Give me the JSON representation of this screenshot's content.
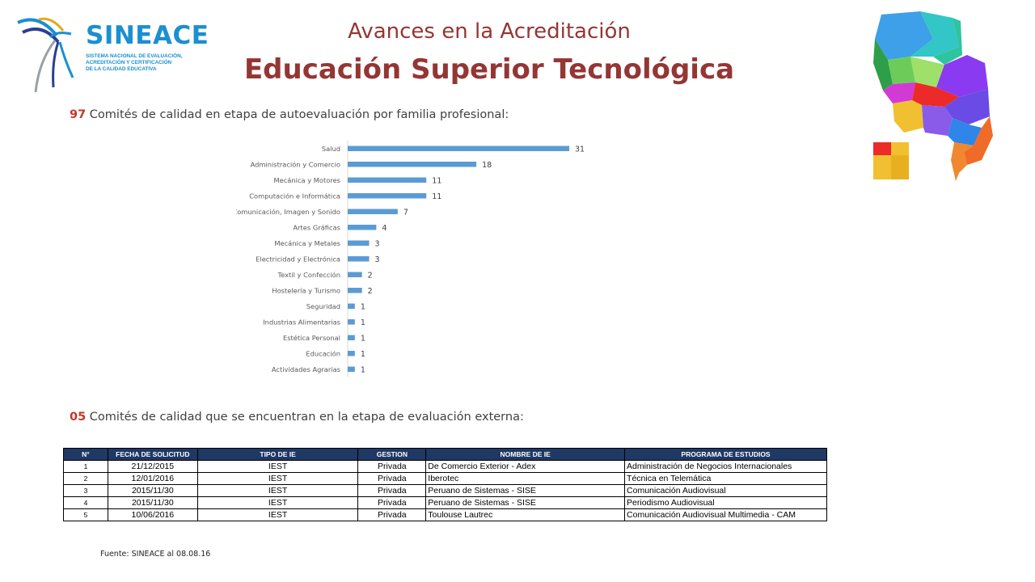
{
  "logo": {
    "name": "SINEACE",
    "subtitle_lines": [
      "SISTEMA NACIONAL DE EVALUACIÓN,",
      "ACREDITACIÓN Y CERTIFICACIÓN",
      "DE LA CALIDAD EDUCATIVA"
    ]
  },
  "header": {
    "title_line1": "Avances en la Acreditación",
    "title_line2": "Educación Superior Tecnológica"
  },
  "section1": {
    "count": "97",
    "text": " Comités de calidad en etapa de autoevaluación por  familia profesional:"
  },
  "section2": {
    "count": "05",
    "text": " Comités de calidad que se encuentran en la etapa de evaluación externa:"
  },
  "chart_data": {
    "type": "bar",
    "orientation": "horizontal",
    "categories": [
      "Salud",
      "Administración y Comercio",
      "Mecánica y Motores",
      "Computación e Informática",
      "Comunicación, Imagen y Sonido",
      "Artes Gráficas",
      "Mecánica y Metales",
      "Electricidad y Electrónica",
      "Textil y Confección",
      "Hostelería y Turismo",
      "Seguridad",
      "Industrias Alimentarias",
      "Estética Personal",
      "Educación",
      "Actividades Agrarias"
    ],
    "values": [
      31,
      18,
      11,
      11,
      7,
      4,
      3,
      3,
      2,
      2,
      1,
      1,
      1,
      1,
      1
    ],
    "xlim": [
      0,
      32
    ],
    "bar_color": "#5b9bd5",
    "data_labels": true,
    "grid": false
  },
  "table": {
    "headers": [
      "N°",
      "FECHA DE SOLICITUD",
      "TIPO DE IE",
      "GESTION",
      "NOMBRE DE IE",
      "PROGRAMA DE ESTUDIOS"
    ],
    "rows": [
      [
        "1",
        "21/12/2015",
        "IEST",
        "Privada",
        "De Comercio Exterior - Adex",
        "Administración de Negocios Internacionales"
      ],
      [
        "2",
        "12/01/2016",
        "IEST",
        "Privada",
        "Iberotec",
        "Técnica en Telemática"
      ],
      [
        "3",
        "2015/11/30",
        "IEST",
        "Privada",
        "Peruano de Sistemas - SISE",
        "Comunicación Audiovisual"
      ],
      [
        "4",
        "2015/11/30",
        "IEST",
        "Privada",
        "Peruano de Sistemas - SISE",
        "Periodismo Audiovisual"
      ],
      [
        "5",
        "10/06/2016",
        "IEST",
        "Privada",
        "Toulouse Lautrec",
        "Comunicación Audiovisual Multimedia - CAM"
      ]
    ]
  },
  "footer": {
    "source": "Fuente: SINEACE al  08.08.16"
  }
}
